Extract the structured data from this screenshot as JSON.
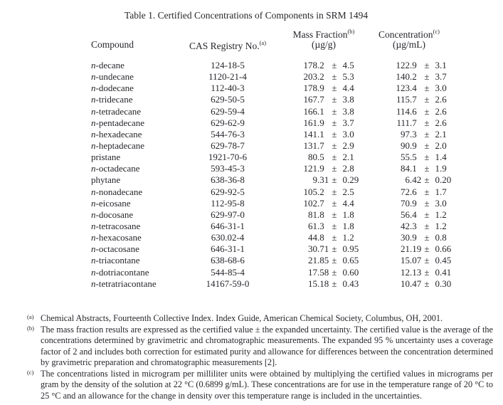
{
  "page": {
    "title": "Table 1.  Certified Concentrations of Components in SRM 1494"
  },
  "table": {
    "headers": {
      "compound": "Compound",
      "cas": "CAS Registry No.",
      "cas_sup": "(a)",
      "mass_fraction": "Mass Fraction",
      "mass_fraction_sup": "(b)",
      "mass_fraction_unit": "(µg/g)",
      "concentration": "Concentration",
      "concentration_sup": "(c)",
      "concentration_unit": "(µg/mL)"
    },
    "plus_minus": "±",
    "rows": [
      {
        "compound": "n-decane",
        "cas": "124-18-5",
        "mass_value": "178.2",
        "mass_unc": "4.5",
        "conc_value": "122.9",
        "conc_unc": "3.1"
      },
      {
        "compound": "n-undecane",
        "cas": "1120-21-4",
        "mass_value": "203.2",
        "mass_unc": "5.3",
        "conc_value": "140.2",
        "conc_unc": "3.7"
      },
      {
        "compound": "n-dodecane",
        "cas": "112-40-3",
        "mass_value": "178.9",
        "mass_unc": "4.4",
        "conc_value": "123.4",
        "conc_unc": "3.0"
      },
      {
        "compound": "n-tridecane",
        "cas": "629-50-5",
        "mass_value": "167.7",
        "mass_unc": "3.8",
        "conc_value": "115.7",
        "conc_unc": "2.6"
      },
      {
        "compound": "n-tetradecane",
        "cas": "629-59-4",
        "mass_value": "166.1",
        "mass_unc": "3.8",
        "conc_value": "114.6",
        "conc_unc": "2.6"
      },
      {
        "compound": "n-pentadecane",
        "cas": "629-62-9",
        "mass_value": "161.9",
        "mass_unc": "3.7",
        "conc_value": "111.7",
        "conc_unc": "2.6"
      },
      {
        "compound": "n-hexadecane",
        "cas": "544-76-3",
        "mass_value": "141.1",
        "mass_unc": "3.0",
        "conc_value": "97.3",
        "conc_unc": "2.1"
      },
      {
        "compound": "n-heptadecane",
        "cas": "629-78-7",
        "mass_value": "131.7",
        "mass_unc": "2.9",
        "conc_value": "90.9",
        "conc_unc": "2.0"
      },
      {
        "compound": "pristane",
        "cas": "1921-70-6",
        "mass_value": "80.5",
        "mass_unc": "2.1",
        "conc_value": "55.5",
        "conc_unc": "1.4"
      },
      {
        "compound": "n-octadecane",
        "cas": "593-45-3",
        "mass_value": "121.9",
        "mass_unc": "2.8",
        "conc_value": "84.1",
        "conc_unc": "1.9"
      },
      {
        "compound": "phytane",
        "cas": "638-36-8",
        "mass_value": "9.31",
        "mass_unc": "0.29",
        "conc_value": "6.42",
        "conc_unc": "0.20"
      },
      {
        "compound": "n-nonadecane",
        "cas": "629-92-5",
        "mass_value": "105.2",
        "mass_unc": "2.5",
        "conc_value": "72.6",
        "conc_unc": "1.7"
      },
      {
        "compound": "n-eicosane",
        "cas": "112-95-8",
        "mass_value": "102.7",
        "mass_unc": "4.4",
        "conc_value": "70.9",
        "conc_unc": "3.0"
      },
      {
        "compound": "n-docosane",
        "cas": "629-97-0",
        "mass_value": "81.8",
        "mass_unc": "1.8",
        "conc_value": "56.4",
        "conc_unc": "1.2"
      },
      {
        "compound": "n-tetracosane",
        "cas": "646-31-1",
        "mass_value": "61.3",
        "mass_unc": "1.8",
        "conc_value": "42.3",
        "conc_unc": "1.2"
      },
      {
        "compound": "n-hexacosane",
        "cas": "630.02-4",
        "mass_value": "44.8",
        "mass_unc": "1.2",
        "conc_value": "30.9",
        "conc_unc": "0.8"
      },
      {
        "compound": "n-octacosane",
        "cas": "646-31-1",
        "mass_value": "30.71",
        "mass_unc": "0.95",
        "conc_value": "21.19",
        "conc_unc": "0.66"
      },
      {
        "compound": "n-triacontane",
        "cas": "638-68-6",
        "mass_value": "21.85",
        "mass_unc": "0.65",
        "conc_value": "15.07",
        "conc_unc": "0.45"
      },
      {
        "compound": "n-dotriacontane",
        "cas": "544-85-4",
        "mass_value": "17.58",
        "mass_unc": "0.60",
        "conc_value": "12.13",
        "conc_unc": "0.41"
      },
      {
        "compound": "n-tetratriacontane",
        "cas": "14167-59-0",
        "mass_value": "15.18",
        "mass_unc": "0.43",
        "conc_value": "10.47",
        "conc_unc": "0.30"
      }
    ]
  },
  "footnotes": [
    {
      "marker": "(a)",
      "text": "Chemical Abstracts, Fourteenth Collective Index.  Index Guide, American Chemical Society, Columbus, OH, 2001."
    },
    {
      "marker": "(b)",
      "text": "The mass fraction results are expressed as the certified value ± the expanded uncertainty.  The certified value is the average of the concentrations determined by gravimetric and chromatographic measurements.  The expanded 95 % uncertainty uses a coverage factor of 2 and includes both correction for estimated purity and allowance for differences between the concentration determined by gravimetric preparation and chromatographic measurements [2]."
    },
    {
      "marker": "(c)",
      "text": "The concentrations listed in microgram per milliliter units were obtained by multiplying the certified values in micrograms per gram by the density of the solution at 22 °C (0.6899 g/mL).  These concentrations are for use in the temperature range of 20 °C to 25 °C and an allowance for the change in density over this temperature range is included in the uncertainties."
    }
  ]
}
